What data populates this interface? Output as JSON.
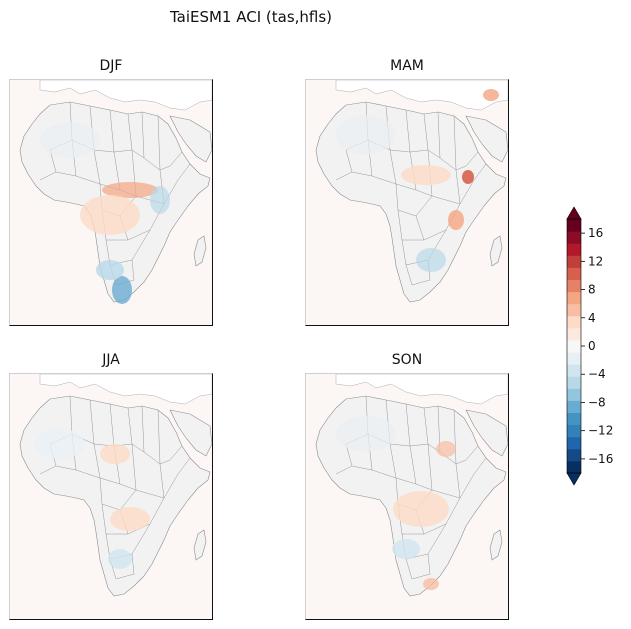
{
  "figure": {
    "title": "TaiESM1 ACI (tas,hfls)"
  },
  "panels": [
    {
      "id": "djf",
      "title": "DJF"
    },
    {
      "id": "mam",
      "title": "MAM"
    },
    {
      "id": "jja",
      "title": "JJA"
    },
    {
      "id": "son",
      "title": "SON"
    }
  ],
  "colorbar": {
    "tick_labels": [
      "16",
      "12",
      "8",
      "4",
      "0",
      "−4",
      "−8",
      "−12",
      "−16"
    ],
    "tick_values": [
      16,
      12,
      8,
      4,
      0,
      -4,
      -8,
      -12,
      -16
    ],
    "range": [
      -18,
      18
    ],
    "extend": "both",
    "colors": [
      "#053061",
      "#144a87",
      "#2166ac",
      "#3480b9",
      "#4393c3",
      "#6aabd1",
      "#92c5de",
      "#b8d8e8",
      "#d1e5f0",
      "#e9f0f4",
      "#f7f7f7",
      "#fbe9df",
      "#fddbc7",
      "#f8bda3",
      "#f4a582",
      "#e58166",
      "#d6604d",
      "#c13f3a",
      "#b2182b",
      "#8a0c26",
      "#67001f"
    ]
  },
  "colors": {
    "land_fill": "#f3f2f2",
    "ocean_fill": "#fcf7f5",
    "border": "#7a7a7a"
  }
}
